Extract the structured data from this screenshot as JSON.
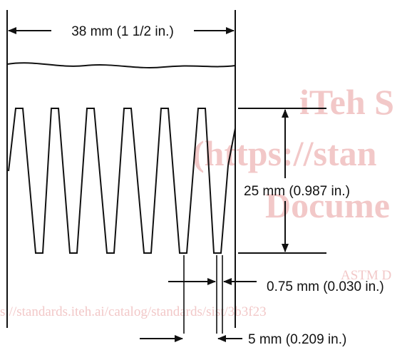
{
  "figure": {
    "dimensions": {
      "width_label": "38 mm (1 1/2 in.)",
      "height_label": "25 mm (0.987 in.)",
      "gap_label": "0.75 mm (0.030 in.)",
      "pitch_label": "5 mm (0.209 in.)"
    },
    "watermark": {
      "line1": "iTeh S",
      "line2": "(https://stan",
      "line3": "Docume",
      "line4": "ASTM D",
      "line5": "s://standards.iteh.ai/catalog/standards/sist/3b3f23"
    },
    "colors": {
      "ink": "#111111",
      "watermark": "#f2c8c8"
    }
  }
}
